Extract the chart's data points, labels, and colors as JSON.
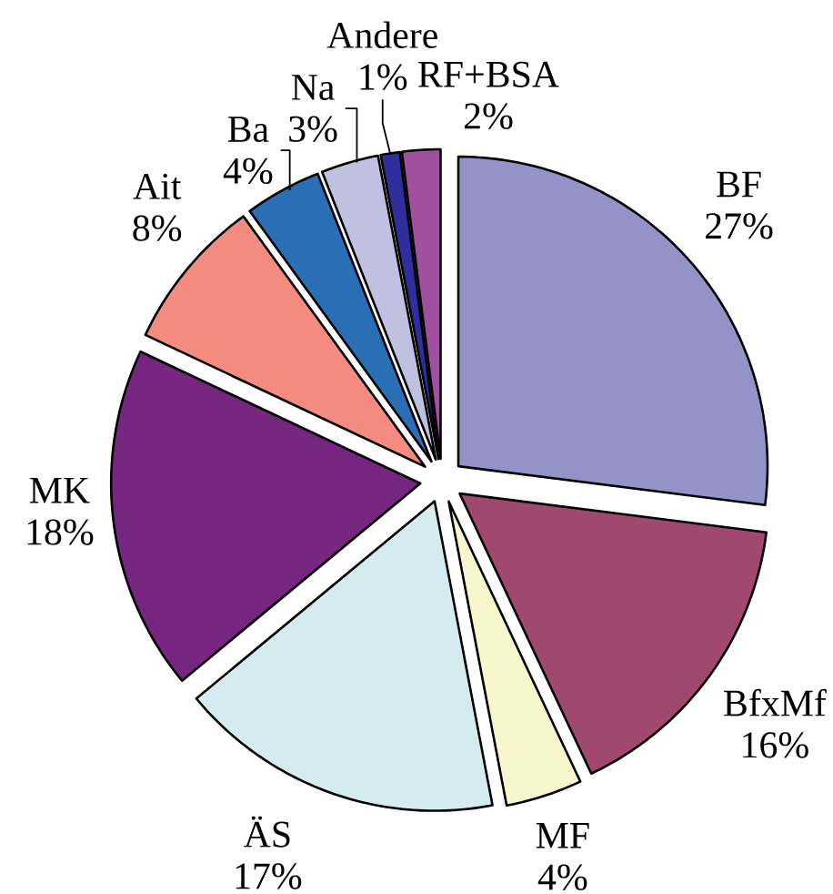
{
  "chart_data": {
    "type": "pie",
    "categories": [
      "BF",
      "BfxMf",
      "MF",
      "ÄS",
      "MK",
      "Ait",
      "Ba",
      "Na",
      "Andere",
      "RF+BSA"
    ],
    "values": [
      27,
      16,
      4,
      17,
      18,
      8,
      4,
      3,
      1,
      2
    ],
    "value_labels": [
      "27%",
      "16%",
      "4%",
      "17%",
      "18%",
      "8%",
      "4%",
      "3%",
      "1%",
      "2%"
    ],
    "colors": [
      "#9493c7",
      "#a04870",
      "#f8f6cc",
      "#d4ecf0",
      "#772680",
      "#f48b80",
      "#2a6eb6",
      "#c0c0e0",
      "#2e2e9c",
      "#a0509f"
    ]
  }
}
